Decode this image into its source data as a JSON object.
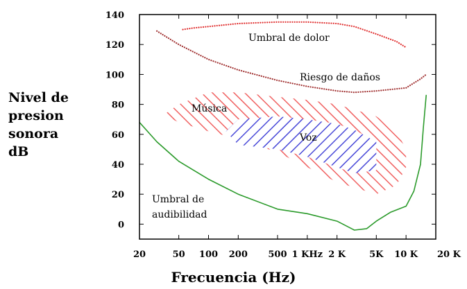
{
  "chart_data": {
    "type": "line",
    "ylabel_lines": [
      "Nivel de",
      "presion",
      "sonora",
      "dB"
    ],
    "xlabel": "Frecuencia (Hz)",
    "x_axis_scale": "log",
    "xlim": [
      20,
      20000
    ],
    "ylim": [
      -10,
      140
    ],
    "x_ticks": [
      {
        "value": 20,
        "label": "20"
      },
      {
        "value": 50,
        "label": "50"
      },
      {
        "value": 100,
        "label": "100"
      },
      {
        "value": 200,
        "label": "200"
      },
      {
        "value": 500,
        "label": "500"
      },
      {
        "value": 1000,
        "label": "1 KHz"
      },
      {
        "value": 2000,
        "label": "2 K"
      },
      {
        "value": 5000,
        "label": "5K"
      },
      {
        "value": 10000,
        "label": "10 K"
      },
      {
        "value": 20000,
        "label": "20 K"
      }
    ],
    "y_ticks": [
      0,
      20,
      40,
      60,
      80,
      100,
      120,
      140
    ],
    "series": [
      {
        "name": "Umbral de dolor",
        "color": "#e03030",
        "style": "dotted",
        "x": [
          55,
          70,
          100,
          200,
          500,
          1000,
          2000,
          3000,
          5000,
          8000,
          10000
        ],
        "y": [
          130,
          131,
          132,
          134,
          135,
          135,
          134,
          132,
          127,
          122,
          118
        ]
      },
      {
        "name": "Riesgo de daños",
        "color": "#a03030",
        "style": "dotted",
        "x": [
          30,
          50,
          100,
          200,
          500,
          1000,
          2000,
          3000,
          5000,
          10000,
          14000,
          16000
        ],
        "y": [
          129,
          120,
          110,
          103,
          96,
          92,
          89,
          88,
          89,
          91,
          97,
          100
        ]
      },
      {
        "name": "Umbral de audibilidad",
        "color": "#2a9a2a",
        "style": "solid",
        "x": [
          20,
          30,
          50,
          100,
          200,
          500,
          1000,
          2000,
          3000,
          4000,
          5000,
          7000,
          10000,
          12000,
          14000,
          15000,
          16000
        ],
        "y": [
          68,
          55,
          42,
          30,
          20,
          10,
          7,
          2,
          -4,
          -3,
          2,
          8,
          12,
          22,
          40,
          65,
          86
        ]
      }
    ],
    "regions": [
      {
        "name": "Música",
        "color": "#f06060",
        "x": [
          35,
          50,
          100,
          200,
          500,
          1000,
          2000,
          5000,
          8000,
          10000,
          10000,
          8000,
          5000,
          2000,
          1000,
          500,
          200,
          100,
          50,
          35
        ],
        "y": [
          73,
          80,
          88,
          88,
          85,
          83,
          80,
          72,
          62,
          50,
          38,
          26,
          20,
          28,
          38,
          48,
          57,
          62,
          68,
          73
        ]
      },
      {
        "name": "Voz",
        "color": "#4848d8",
        "x": [
          150,
          200,
          500,
          1000,
          2000,
          3000,
          5000,
          5000,
          3000,
          2000,
          1000,
          500,
          200,
          150
        ],
        "y": [
          62,
          70,
          72,
          70,
          67,
          63,
          55,
          36,
          34,
          38,
          45,
          50,
          53,
          62
        ]
      }
    ],
    "annotations": [
      {
        "id": "dolor",
        "text": "Umbral de dolor"
      },
      {
        "id": "danos",
        "text": "Riesgo de daños"
      },
      {
        "id": "musica",
        "text": "Música"
      },
      {
        "id": "voz",
        "text": "Voz"
      },
      {
        "id": "audib1",
        "text": "Umbral de"
      },
      {
        "id": "audib2",
        "text": "audibilidad"
      }
    ]
  }
}
